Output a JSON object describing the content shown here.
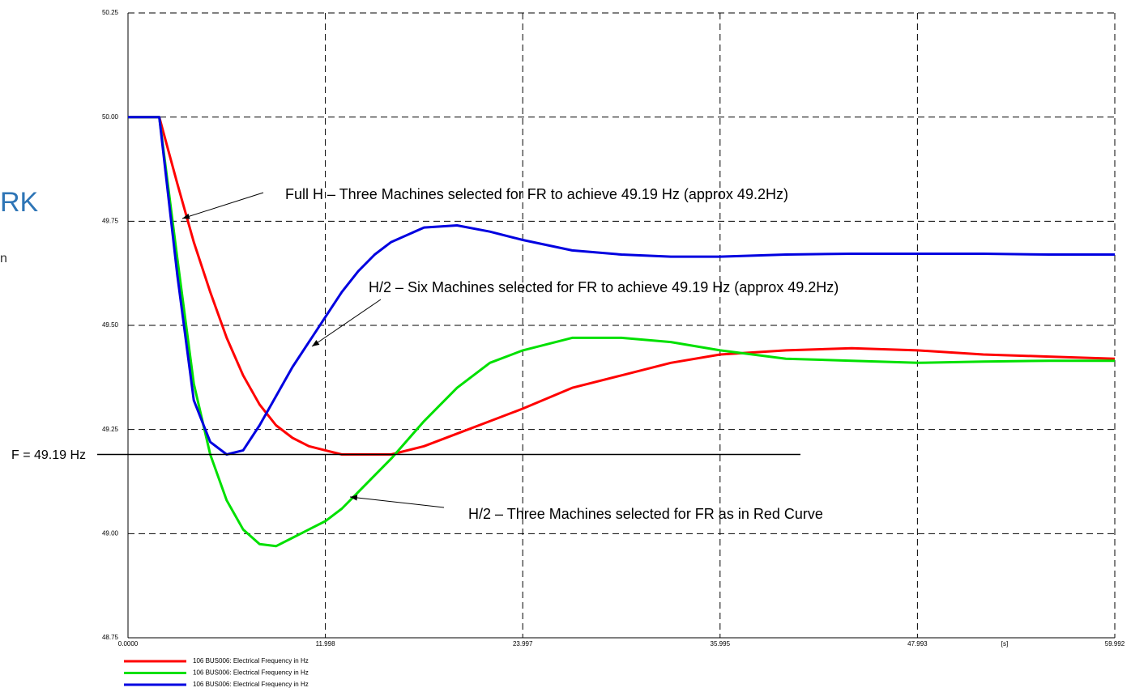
{
  "slide_fragments": [
    "RK",
    "n"
  ],
  "chart_data": {
    "type": "line",
    "x": [
      0,
      1.9,
      3,
      4,
      5,
      6,
      7,
      8,
      9,
      10,
      11,
      12,
      13,
      14,
      15,
      16,
      18,
      20,
      22,
      24,
      27,
      30,
      33,
      36,
      40,
      44,
      48,
      52,
      56,
      59.992
    ],
    "series": [
      {
        "name": "106 BUS006: Electrical Frequency in Hz",
        "color": "#ff0000",
        "values": [
          50,
          50,
          49.84,
          49.7,
          49.58,
          49.47,
          49.38,
          49.31,
          49.26,
          49.23,
          49.21,
          49.2,
          49.19,
          49.19,
          49.19,
          49.19,
          49.21,
          49.24,
          49.27,
          49.3,
          49.35,
          49.38,
          49.41,
          49.43,
          49.44,
          49.445,
          49.44,
          49.43,
          49.425,
          49.42
        ]
      },
      {
        "name": "106 BUS006: Electrical Frequency in Hz",
        "color": "#00e000",
        "values": [
          50,
          50,
          49.66,
          49.36,
          49.19,
          49.08,
          49.01,
          48.975,
          48.97,
          48.99,
          49.01,
          49.03,
          49.06,
          49.1,
          49.14,
          49.18,
          49.27,
          49.35,
          49.41,
          49.44,
          49.47,
          49.47,
          49.46,
          49.44,
          49.42,
          49.415,
          49.41,
          49.413,
          49.415,
          49.415
        ]
      },
      {
        "name": "106 BUS006: Electrical Frequency in Hz",
        "color": "#0000e0",
        "values": [
          50,
          50,
          49.62,
          49.32,
          49.22,
          49.19,
          49.2,
          49.26,
          49.33,
          49.4,
          49.46,
          49.52,
          49.58,
          49.63,
          49.67,
          49.7,
          49.735,
          49.74,
          49.725,
          49.705,
          49.68,
          49.67,
          49.665,
          49.665,
          49.67,
          49.672,
          49.672,
          49.672,
          49.67,
          49.67
        ]
      }
    ],
    "xlim": [
      0,
      59.992
    ],
    "xticks": [
      {
        "value": 0,
        "label": "0.0000"
      },
      11.998,
      23.997,
      35.995,
      47.993,
      59.992
    ],
    "xlabel": "[s]",
    "ylim": [
      48.75,
      50.25
    ],
    "yticks": [
      48.75,
      {
        "value": 49,
        "label": "49.00"
      },
      49.25,
      {
        "value": 49.5,
        "label": "49.50"
      },
      49.75,
      {
        "value": 50,
        "label": "50.00"
      },
      50.25
    ],
    "grid": true,
    "reference_line": {
      "value": 49.19,
      "label": "F = 49.19 Hz"
    },
    "annotations": [
      "Full H – Three Machines selected for FR to achieve 49.19 Hz (approx 49.2Hz)",
      "H/2 – Six Machines selected for FR to achieve 49.19 Hz (approx 49.2Hz)",
      "H/2 – Three Machines selected for FR as in Red Curve"
    ]
  }
}
